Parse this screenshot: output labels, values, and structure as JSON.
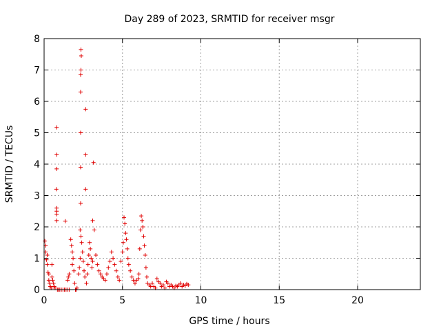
{
  "chart_data": {
    "type": "scatter",
    "title": "Day 289 of 2023, SRMTID for receiver msgr",
    "xlabel": "GPS time / hours",
    "ylabel": "SRMTID / TECUs",
    "xlim": [
      0,
      24
    ],
    "ylim": [
      0,
      8
    ],
    "xticks": [
      0,
      5,
      10,
      15,
      20
    ],
    "yticks": [
      0,
      1,
      2,
      3,
      4,
      5,
      6,
      7,
      8
    ],
    "grid": true,
    "marker": "+",
    "colors": {
      "series": "#e00000",
      "grid": "#a0a0a0",
      "axis": "#000000"
    },
    "series": [
      {
        "name": "msgr",
        "points": [
          [
            0.05,
            1.55
          ],
          [
            0.1,
            1.4
          ],
          [
            0.1,
            1.2
          ],
          [
            0.15,
            0.95
          ],
          [
            0.2,
            1.1
          ],
          [
            0.2,
            0.8
          ],
          [
            0.25,
            0.55
          ],
          [
            0.3,
            0.5
          ],
          [
            0.3,
            0.3
          ],
          [
            0.35,
            0.2
          ],
          [
            0.4,
            0.1
          ],
          [
            0.45,
            0.05
          ],
          [
            0.5,
            0.8
          ],
          [
            0.5,
            0.4
          ],
          [
            0.55,
            0.3
          ],
          [
            0.6,
            0.2
          ],
          [
            0.65,
            0.1
          ],
          [
            0.7,
            0.05
          ],
          [
            0.8,
            5.17
          ],
          [
            0.8,
            4.3
          ],
          [
            0.8,
            3.85
          ],
          [
            0.78,
            3.2
          ],
          [
            0.8,
            2.6
          ],
          [
            0.8,
            2.5
          ],
          [
            0.8,
            2.4
          ],
          [
            0.8,
            2.2
          ],
          [
            0.85,
            0.0
          ],
          [
            0.9,
            0.0
          ],
          [
            1.0,
            0.0
          ],
          [
            1.1,
            0.0
          ],
          [
            1.2,
            0.0
          ],
          [
            1.3,
            0.0
          ],
          [
            1.4,
            0.0
          ],
          [
            1.5,
            0.0
          ],
          [
            1.6,
            0.0
          ],
          [
            1.35,
            2.18
          ],
          [
            1.5,
            0.3
          ],
          [
            1.55,
            0.4
          ],
          [
            1.6,
            0.5
          ],
          [
            1.7,
            1.6
          ],
          [
            1.75,
            1.4
          ],
          [
            1.8,
            1.2
          ],
          [
            1.85,
            1.0
          ],
          [
            1.8,
            0.8
          ],
          [
            1.9,
            0.6
          ],
          [
            1.95,
            0.2
          ],
          [
            2.0,
            0.0
          ],
          [
            2.05,
            0.0
          ],
          [
            2.1,
            0.05
          ],
          [
            2.2,
            0.5
          ],
          [
            2.25,
            0.7
          ],
          [
            2.3,
            1.0
          ],
          [
            2.3,
            1.9
          ],
          [
            2.35,
            1.7
          ],
          [
            2.4,
            1.5
          ],
          [
            2.35,
            7.65
          ],
          [
            2.37,
            7.45
          ],
          [
            2.35,
            7.0
          ],
          [
            2.33,
            6.85
          ],
          [
            2.33,
            6.3
          ],
          [
            2.33,
            5.0
          ],
          [
            2.33,
            3.9
          ],
          [
            2.33,
            2.75
          ],
          [
            2.45,
            1.2
          ],
          [
            2.5,
            0.9
          ],
          [
            2.55,
            0.6
          ],
          [
            2.6,
            0.4
          ],
          [
            2.65,
            5.75
          ],
          [
            2.65,
            4.3
          ],
          [
            2.65,
            3.2
          ],
          [
            2.7,
            0.2
          ],
          [
            2.75,
            0.5
          ],
          [
            2.8,
            0.8
          ],
          [
            2.85,
            1.1
          ],
          [
            2.9,
            1.5
          ],
          [
            2.95,
            1.3
          ],
          [
            3.0,
            1.0
          ],
          [
            3.05,
            0.7
          ],
          [
            3.1,
            0.9
          ],
          [
            3.1,
            2.2
          ],
          [
            3.15,
            4.05
          ],
          [
            3.2,
            1.9
          ],
          [
            3.3,
            1.1
          ],
          [
            3.4,
            0.8
          ],
          [
            3.5,
            0.6
          ],
          [
            3.6,
            0.5
          ],
          [
            3.7,
            0.4
          ],
          [
            3.8,
            0.35
          ],
          [
            3.9,
            0.3
          ],
          [
            4.0,
            0.5
          ],
          [
            4.1,
            0.7
          ],
          [
            4.2,
            0.9
          ],
          [
            4.3,
            1.2
          ],
          [
            4.4,
            1.0
          ],
          [
            4.5,
            0.8
          ],
          [
            4.6,
            0.6
          ],
          [
            4.7,
            0.4
          ],
          [
            4.8,
            0.3
          ],
          [
            4.9,
            0.9
          ],
          [
            5.0,
            1.2
          ],
          [
            5.05,
            1.5
          ],
          [
            5.1,
            2.3
          ],
          [
            5.15,
            2.1
          ],
          [
            5.2,
            1.8
          ],
          [
            5.25,
            1.6
          ],
          [
            5.3,
            1.3
          ],
          [
            5.35,
            1.0
          ],
          [
            5.4,
            0.8
          ],
          [
            5.5,
            0.6
          ],
          [
            5.6,
            0.4
          ],
          [
            5.7,
            0.3
          ],
          [
            5.8,
            0.2
          ],
          [
            5.9,
            0.3
          ],
          [
            6.0,
            0.35
          ],
          [
            6.05,
            0.5
          ],
          [
            6.1,
            1.3
          ],
          [
            6.15,
            1.9
          ],
          [
            6.2,
            2.35
          ],
          [
            6.25,
            2.2
          ],
          [
            6.3,
            2.0
          ],
          [
            6.35,
            1.7
          ],
          [
            6.4,
            1.4
          ],
          [
            6.45,
            1.1
          ],
          [
            6.5,
            0.7
          ],
          [
            6.55,
            0.4
          ],
          [
            6.6,
            0.2
          ],
          [
            6.7,
            0.15
          ],
          [
            6.8,
            0.1
          ],
          [
            6.9,
            0.2
          ],
          [
            7.0,
            0.1
          ],
          [
            7.1,
            0.05
          ],
          [
            7.2,
            0.35
          ],
          [
            7.3,
            0.25
          ],
          [
            7.4,
            0.2
          ],
          [
            7.5,
            0.1
          ],
          [
            7.6,
            0.15
          ],
          [
            7.7,
            0.05
          ],
          [
            7.8,
            0.25
          ],
          [
            7.9,
            0.2
          ],
          [
            8.0,
            0.1
          ],
          [
            8.1,
            0.15
          ],
          [
            8.2,
            0.1
          ],
          [
            8.3,
            0.05
          ],
          [
            8.4,
            0.12
          ],
          [
            8.5,
            0.1
          ],
          [
            8.6,
            0.15
          ],
          [
            8.7,
            0.2
          ],
          [
            8.8,
            0.1
          ],
          [
            8.9,
            0.15
          ],
          [
            9.0,
            0.12
          ],
          [
            9.1,
            0.18
          ],
          [
            9.2,
            0.15
          ]
        ]
      }
    ]
  }
}
